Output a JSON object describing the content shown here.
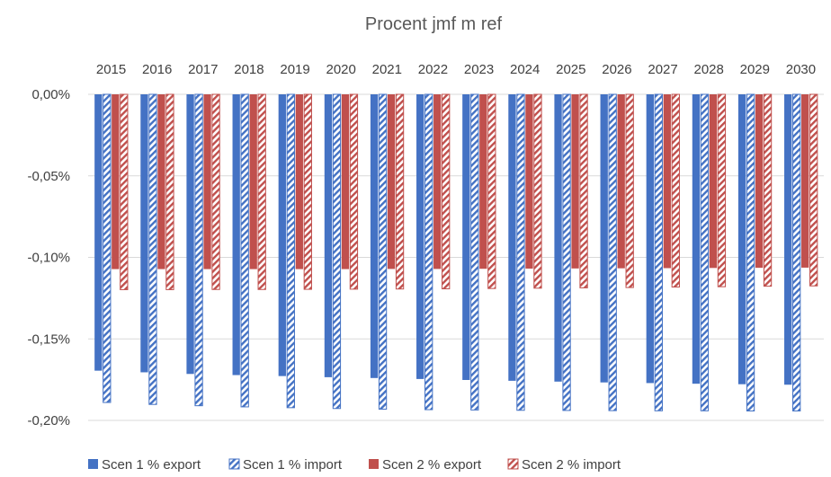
{
  "chart_data": {
    "type": "bar",
    "title": "Procent jmf m ref",
    "categories": [
      "2015",
      "2016",
      "2017",
      "2018",
      "2019",
      "2020",
      "2021",
      "2022",
      "2023",
      "2024",
      "2025",
      "2026",
      "2027",
      "2028",
      "2029",
      "2030"
    ],
    "category_axis_position": "top",
    "ylim": [
      -0.2,
      0
    ],
    "yticks": [
      0,
      -0.05,
      -0.1,
      -0.15,
      -0.2
    ],
    "ytick_labels": [
      "0,00%",
      "-0,05%",
      "-0,10%",
      "-0,15%",
      "-0,20%"
    ],
    "grid": true,
    "legend": "bottom",
    "series": [
      {
        "name": "Scen 1 % export",
        "color": "#4472C4",
        "pattern": "solid",
        "values": [
          -0.1695,
          -0.1705,
          -0.1715,
          -0.1722,
          -0.1728,
          -0.1735,
          -0.174,
          -0.1746,
          -0.1752,
          -0.1757,
          -0.1762,
          -0.1767,
          -0.1771,
          -0.1775,
          -0.1778,
          -0.1781
        ]
      },
      {
        "name": "Scen 1 % import",
        "color": "#4472C4",
        "pattern": "hatched",
        "values": [
          -0.189,
          -0.1902,
          -0.191,
          -0.1917,
          -0.1922,
          -0.1927,
          -0.1931,
          -0.1934,
          -0.1936,
          -0.1938,
          -0.1939,
          -0.194,
          -0.1941,
          -0.1941,
          -0.1942,
          -0.1942
        ]
      },
      {
        "name": "Scen 2 % export",
        "color": "#C0504D",
        "pattern": "solid",
        "values": [
          -0.1072,
          -0.1072,
          -0.1072,
          -0.1072,
          -0.1072,
          -0.1072,
          -0.1071,
          -0.1071,
          -0.107,
          -0.1069,
          -0.1068,
          -0.1067,
          -0.1066,
          -0.1065,
          -0.1064,
          -0.1063
        ]
      },
      {
        "name": "Scen 2 % import",
        "color": "#C0504D",
        "pattern": "hatched",
        "values": [
          -0.1198,
          -0.1198,
          -0.1197,
          -0.1197,
          -0.1196,
          -0.1195,
          -0.1194,
          -0.1193,
          -0.1191,
          -0.1189,
          -0.1187,
          -0.1185,
          -0.1182,
          -0.118,
          -0.1177,
          -0.1175
        ]
      }
    ]
  }
}
